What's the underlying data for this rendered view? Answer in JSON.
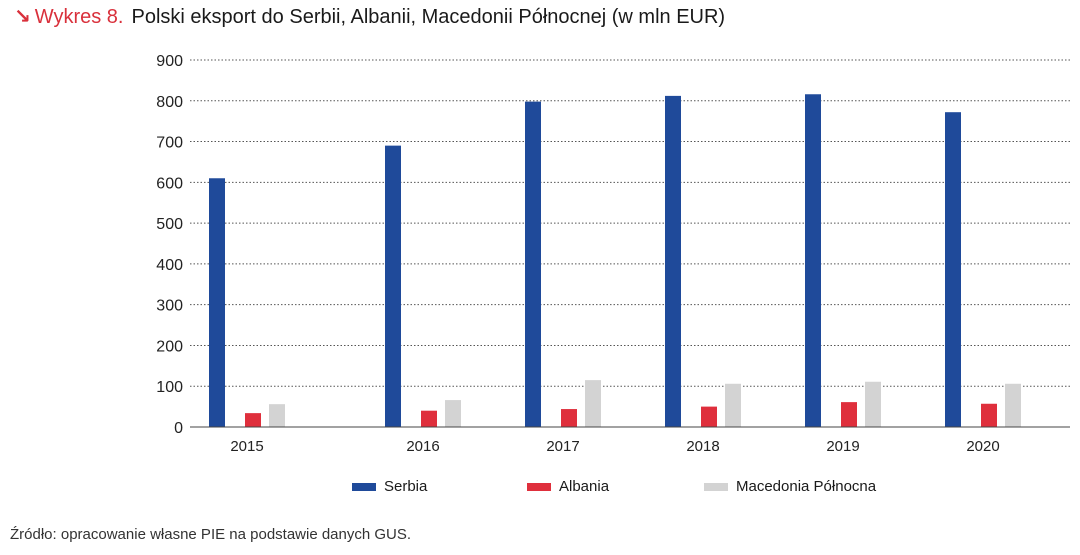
{
  "header": {
    "arrow_icon": "↘",
    "prefix": "Wykres 8.",
    "title": "Polski eksport do Serbii, Albanii, Macedonii Północnej (w mln EUR)"
  },
  "colors": {
    "accent": "#d9303b",
    "serbia": "#1f4a9a",
    "albania": "#df2f3c",
    "macedonia": "#d3d3d3",
    "grid": "#555555"
  },
  "chart_data": {
    "type": "bar",
    "categories": [
      "2015",
      "2016",
      "2017",
      "2018",
      "2019",
      "2020"
    ],
    "series": [
      {
        "name": "Serbia",
        "values": [
          610,
          690,
          798,
          812,
          816,
          772
        ]
      },
      {
        "name": "Albania",
        "values": [
          34,
          40,
          44,
          50,
          61,
          57
        ]
      },
      {
        "name": "Macedonia Północna",
        "values": [
          56,
          66,
          115,
          106,
          111,
          106
        ]
      }
    ],
    "yticks": [
      "0",
      "100",
      "200",
      "300",
      "400",
      "500",
      "600",
      "700",
      "800",
      "900"
    ],
    "ylim": [
      0,
      900
    ],
    "grid": true,
    "legend": "bottom"
  },
  "footer": {
    "source": "Źródło: opracowanie własne PIE na podstawie danych GUS."
  }
}
